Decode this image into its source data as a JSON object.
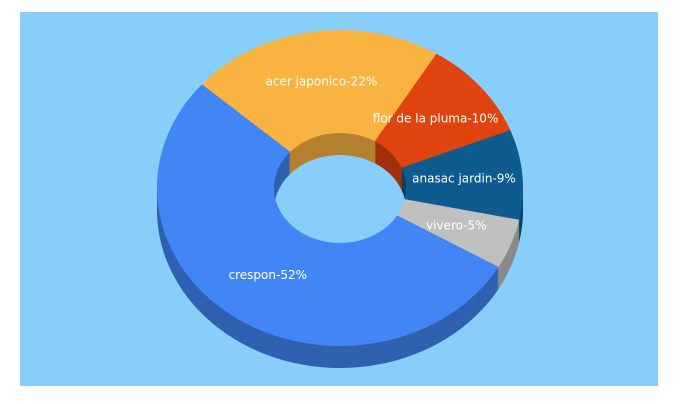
{
  "chart_data": {
    "type": "donut3d",
    "values": [
      22,
      10,
      9,
      5,
      52
    ],
    "value_labels": [
      "acer japonico-22%",
      "flor de la pluma-10%",
      "anasac jardin-9%",
      "vivero-5%",
      "crespon-52%"
    ],
    "colors": [
      "#f9b341",
      "#e0440e",
      "#0e5c8f",
      "#c0c0c0",
      "#4285f4"
    ]
  }
}
